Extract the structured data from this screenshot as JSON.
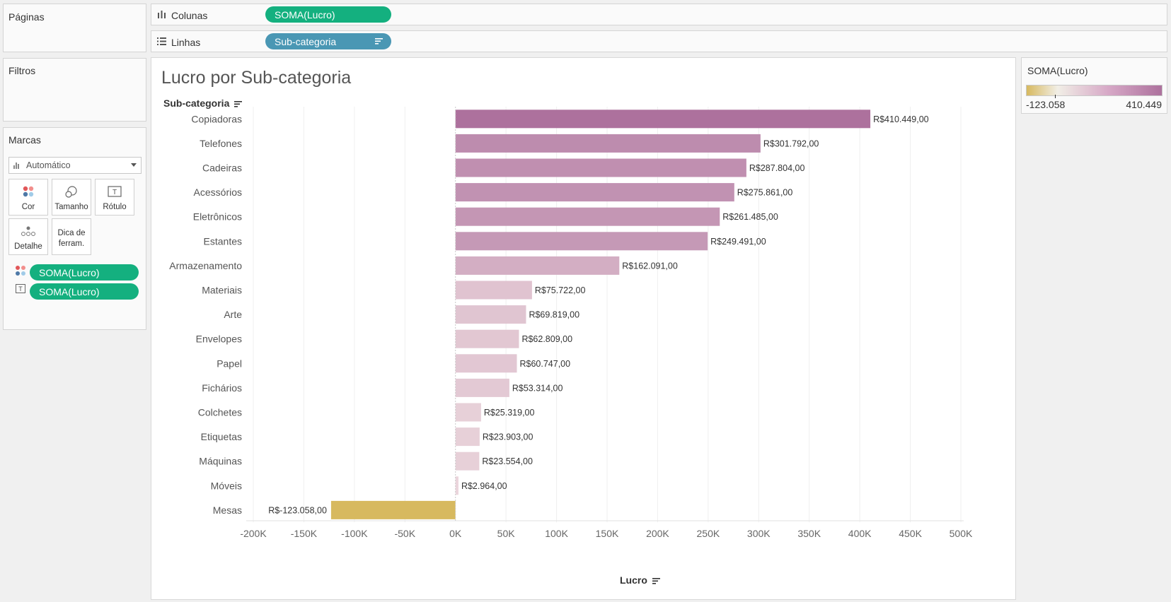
{
  "left_panel": {
    "pages_title": "Páginas",
    "filters_title": "Filtros",
    "marks": {
      "title": "Marcas",
      "mark_type": "Automático",
      "cards": [
        {
          "label": "Cor",
          "icon": "color-dots-icon"
        },
        {
          "label": "Tamanho",
          "icon": "size-icon"
        },
        {
          "label": "Rótulo",
          "icon": "label-T-icon"
        },
        {
          "label": "Detalhe",
          "icon": "detail-dots-icon"
        },
        {
          "label_line1": "Dica de",
          "label_line2": "ferram.",
          "icon": "tooltip"
        }
      ],
      "fields": [
        {
          "icon": "color-dots-icon",
          "label": "SOMA(Lucro)"
        },
        {
          "icon": "label-T-icon",
          "label": "SOMA(Lucro)"
        }
      ]
    }
  },
  "shelves": {
    "columns_label": "Colunas",
    "columns_pill": "SOMA(Lucro)",
    "rows_label": "Linhas",
    "rows_pill": "Sub-categoria"
  },
  "view": {
    "title": "Lucro por Sub-categoria",
    "row_header": "Sub-categoria",
    "x_axis_label": "Lucro"
  },
  "legend": {
    "title": "SOMA(Lucro)",
    "min_label": "-123.058",
    "max_label": "410.449"
  },
  "colors": {
    "pill_green": "#14b07f",
    "pill_blue": "#4a97b4",
    "negative": "#d7b95f",
    "positive_max": "#ad719d",
    "positive_light": "#e4c9d4"
  },
  "chart_data": {
    "type": "bar",
    "orientation": "horizontal",
    "title": "Lucro por Sub-categoria",
    "xlabel": "Lucro",
    "ylabel": "Sub-categoria",
    "xlim": [
      -200000,
      500000
    ],
    "xticks": [
      -200000,
      -150000,
      -100000,
      -50000,
      0,
      50000,
      100000,
      150000,
      200000,
      250000,
      300000,
      350000,
      400000,
      450000,
      500000
    ],
    "xtick_labels": [
      "-200K",
      "-150K",
      "-100K",
      "-50K",
      "0K",
      "50K",
      "100K",
      "150K",
      "200K",
      "250K",
      "300K",
      "350K",
      "400K",
      "450K",
      "500K"
    ],
    "categories": [
      "Copiadoras",
      "Telefones",
      "Cadeiras",
      "Acessórios",
      "Eletrônicos",
      "Estantes",
      "Armazenamento",
      "Materiais",
      "Arte",
      "Envelopes",
      "Papel",
      "Fichários",
      "Colchetes",
      "Etiquetas",
      "Máquinas",
      "Móveis",
      "Mesas"
    ],
    "values": [
      410449,
      301792,
      287804,
      275861,
      261485,
      249491,
      162091,
      75722,
      69819,
      62809,
      60747,
      53314,
      25319,
      23903,
      23554,
      2964,
      -123058
    ],
    "data_labels": [
      "R$410.449,00",
      "R$301.792,00",
      "R$287.804,00",
      "R$275.861,00",
      "R$261.485,00",
      "R$249.491,00",
      "R$162.091,00",
      "R$75.722,00",
      "R$69.819,00",
      "R$62.809,00",
      "R$60.747,00",
      "R$53.314,00",
      "R$25.319,00",
      "R$23.903,00",
      "R$23.554,00",
      "R$2.964,00",
      "R$-123.058,00"
    ],
    "color_range": [
      -123058,
      410449
    ],
    "grid": true
  }
}
